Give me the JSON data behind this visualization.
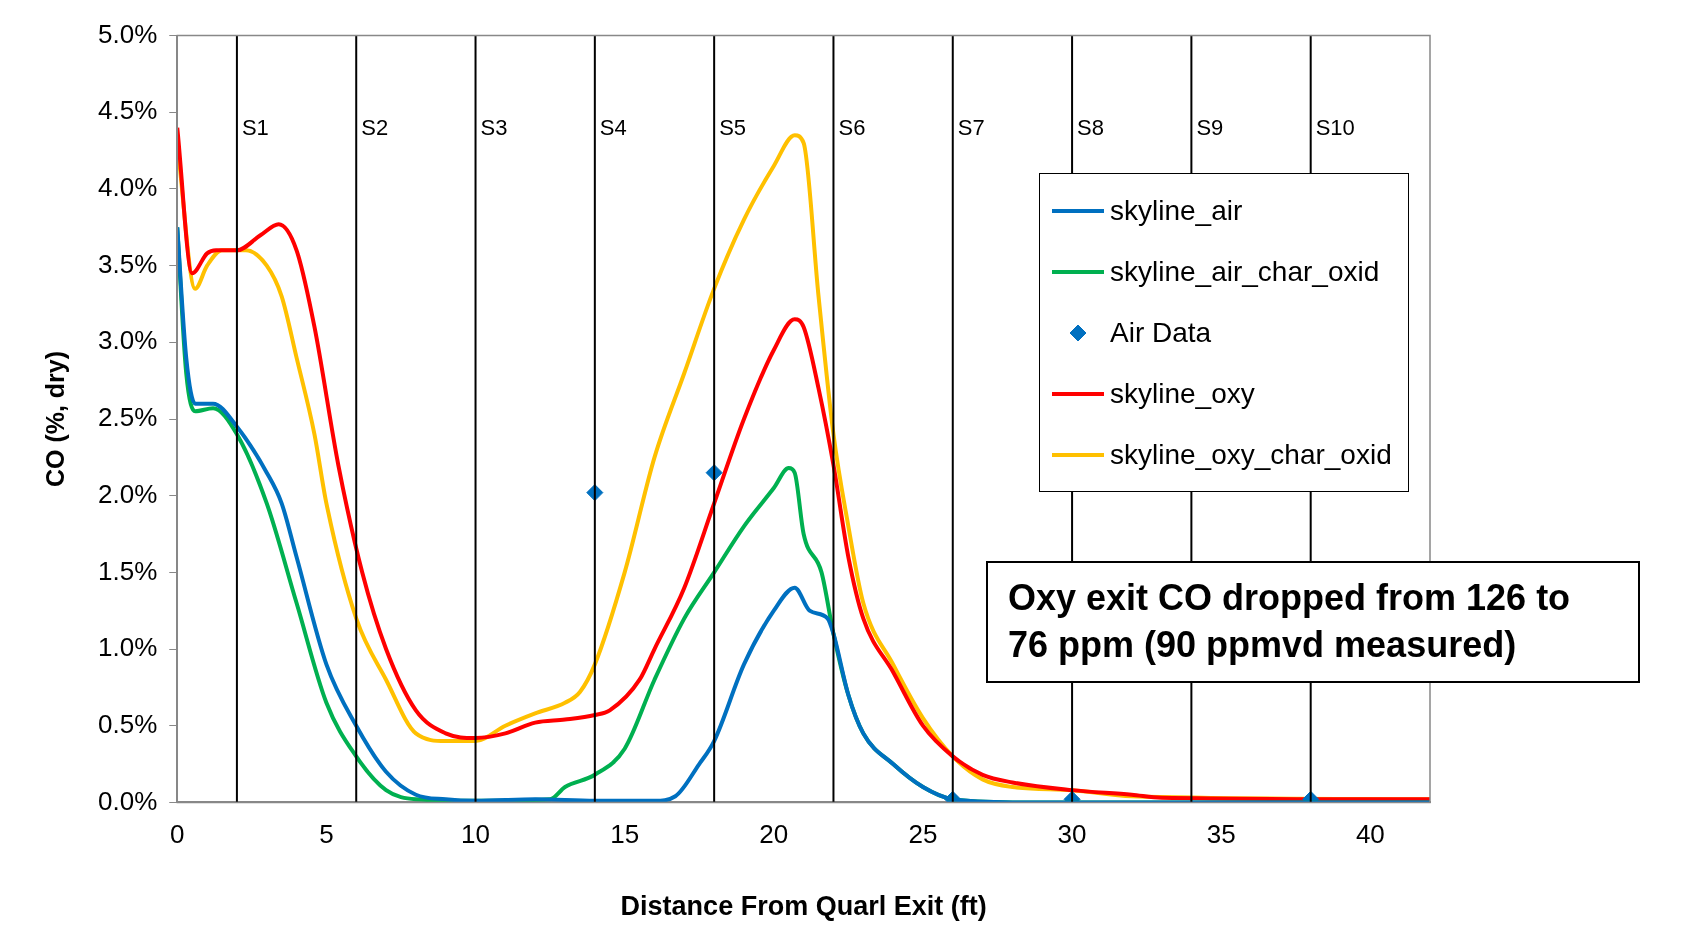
{
  "chart_data": {
    "type": "line",
    "xlabel": "Distance From Quarl Exit (ft)",
    "ylabel": "CO (%, dry)",
    "xlim": [
      0,
      42
    ],
    "xticks": [
      0,
      5,
      10,
      15,
      20,
      25,
      30,
      35,
      40
    ],
    "ylim": [
      0,
      5
    ],
    "yticks": [
      {
        "value": 0,
        "label": "0.0%"
      },
      {
        "value": 0.5,
        "label": "0.5%"
      },
      {
        "value": 1,
        "label": "1.0%"
      },
      {
        "value": 1.5,
        "label": "1.5%"
      },
      {
        "value": 2,
        "label": "2.0%"
      },
      {
        "value": 2.5,
        "label": "2.5%"
      },
      {
        "value": 3,
        "label": "3.0%"
      },
      {
        "value": 3.5,
        "label": "3.5%"
      },
      {
        "value": 4,
        "label": "4.0%"
      },
      {
        "value": 4.5,
        "label": "4.5%"
      },
      {
        "value": 5,
        "label": "5.0%"
      }
    ],
    "grid": false,
    "legend": "top right",
    "series": [
      {
        "name": "skyline_air",
        "color": "#0070c0",
        "x": [
          0,
          0.3,
          0.6,
          1.2,
          2,
          3,
          3.5,
          4,
          5,
          6,
          7,
          8,
          9,
          10,
          12,
          14,
          16,
          16.7,
          17.5,
          18,
          19,
          20,
          20.7,
          21.2,
          21.8,
          22,
          22.5,
          23,
          24,
          25,
          26,
          28,
          42
        ],
        "values": [
          3.75,
          2.9,
          2.6,
          2.6,
          2.45,
          2.15,
          1.95,
          1.6,
          0.9,
          0.5,
          0.2,
          0.05,
          0.02,
          0.01,
          0.02,
          0.01,
          0.01,
          0.04,
          0.25,
          0.4,
          0.9,
          1.25,
          1.4,
          1.25,
          1.2,
          1.1,
          0.7,
          0.45,
          0.25,
          0.1,
          0.02,
          0,
          0
        ]
      },
      {
        "name": "skyline_air_char_oxid",
        "color": "#00b050",
        "x": [
          0,
          0.3,
          0.6,
          1.2,
          2,
          3,
          4,
          5,
          6,
          7,
          8,
          10,
          12.5,
          13,
          14,
          15,
          16,
          17,
          18,
          19,
          20,
          20.5,
          20.7,
          21,
          21.6,
          22,
          22.5,
          23,
          24,
          25,
          26,
          28,
          42
        ],
        "values": [
          3.75,
          2.8,
          2.55,
          2.57,
          2.4,
          1.95,
          1.3,
          0.65,
          0.3,
          0.08,
          0.02,
          0.01,
          0.02,
          0.1,
          0.18,
          0.35,
          0.8,
          1.2,
          1.5,
          1.8,
          2.05,
          2.18,
          2.15,
          1.75,
          1.5,
          1.1,
          0.7,
          0.45,
          0.25,
          0.1,
          0.02,
          0,
          0
        ]
      },
      {
        "name": "Air Data",
        "type": "scatter",
        "color": "#0070c0",
        "marker": "diamond",
        "x": [
          14,
          18,
          26,
          30,
          38
        ],
        "values": [
          2.02,
          2.15,
          0.02,
          0.02,
          0.02
        ]
      },
      {
        "name": "skyline_oxy",
        "color": "#ff0000",
        "x": [
          0,
          0.5,
          1,
          1.3,
          2,
          2.8,
          3.4,
          4,
          4.6,
          5.4,
          6.2,
          7,
          8,
          9,
          10,
          11,
          12,
          13,
          14,
          14.5,
          15.5,
          16,
          17,
          18,
          19,
          20,
          20.7,
          21,
          21.5,
          22,
          22.5,
          23,
          24,
          25,
          26,
          27,
          28,
          30,
          32,
          33,
          42
        ],
        "values": [
          4.4,
          3.45,
          3.58,
          3.6,
          3.6,
          3.7,
          3.77,
          3.6,
          3.1,
          2.2,
          1.5,
          1,
          0.6,
          0.45,
          0.42,
          0.45,
          0.52,
          0.54,
          0.57,
          0.6,
          0.8,
          1,
          1.4,
          1.95,
          2.5,
          2.95,
          3.15,
          3.1,
          2.7,
          2.2,
          1.6,
          1.2,
          0.85,
          0.5,
          0.3,
          0.18,
          0.13,
          0.08,
          0.05,
          0.03,
          0.02
        ]
      },
      {
        "name": "skyline_oxy_char_oxid",
        "color": "#ffc000",
        "x": [
          0,
          0.6,
          1,
          1.5,
          2.3,
          3,
          3.5,
          4,
          4.6,
          5,
          6,
          7,
          8,
          9,
          10,
          11,
          12,
          13,
          13.5,
          14,
          15,
          16,
          17,
          18,
          19,
          20,
          20.7,
          21,
          21.5,
          22,
          22.5,
          23,
          24,
          25,
          26,
          27,
          28,
          30,
          32,
          42
        ],
        "values": [
          4.3,
          3.35,
          3.5,
          3.6,
          3.6,
          3.5,
          3.3,
          2.9,
          2.4,
          1.95,
          1.2,
          0.8,
          0.45,
          0.4,
          0.4,
          0.5,
          0.58,
          0.65,
          0.72,
          0.9,
          1.5,
          2.25,
          2.8,
          3.35,
          3.8,
          4.15,
          4.35,
          4.3,
          3.3,
          2.4,
          1.8,
          1.3,
          0.9,
          0.55,
          0.3,
          0.15,
          0.1,
          0.08,
          0.04,
          0.02
        ]
      }
    ],
    "ref_lines": [
      {
        "axis": "x",
        "value": 2,
        "label": "S1",
        "color": "#000000"
      },
      {
        "axis": "x",
        "value": 6,
        "label": "S2",
        "color": "#000000"
      },
      {
        "axis": "x",
        "value": 10,
        "label": "S3",
        "color": "#000000"
      },
      {
        "axis": "x",
        "value": 14,
        "label": "S4",
        "color": "#000000"
      },
      {
        "axis": "x",
        "value": 18,
        "label": "S5",
        "color": "#000000"
      },
      {
        "axis": "x",
        "value": 22,
        "label": "S6",
        "color": "#000000"
      },
      {
        "axis": "x",
        "value": 26,
        "label": "S7",
        "color": "#000000"
      },
      {
        "axis": "x",
        "value": 30,
        "label": "S8",
        "color": "#000000"
      },
      {
        "axis": "x",
        "value": 34,
        "label": "S9",
        "color": "#000000"
      },
      {
        "axis": "x",
        "value": 38,
        "label": "S10",
        "color": "#000000"
      }
    ],
    "annotations": [
      "Oxy exit CO dropped from 126 to 76 ppm (90 ppmvd measured)"
    ]
  }
}
